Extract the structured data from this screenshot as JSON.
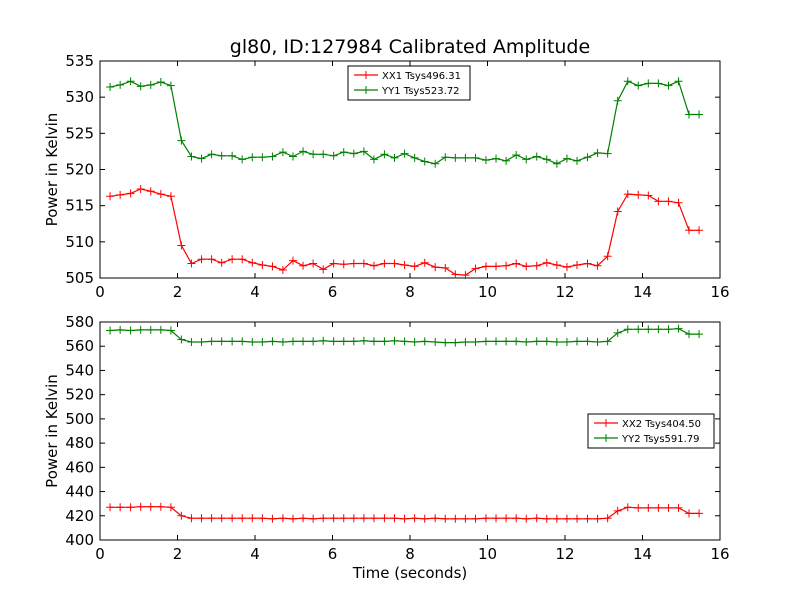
{
  "figure": {
    "title": "gl80, ID:127984 Calibrated Amplitude",
    "xlabel": "Time (seconds)"
  },
  "chart_data": [
    {
      "type": "line",
      "title": "gl80, ID:127984 Calibrated Amplitude",
      "xlabel": "",
      "ylabel": "Power in Kelvin",
      "xlim": [
        0,
        16
      ],
      "ylim": [
        505,
        535
      ],
      "xticks": [
        "0",
        "2",
        "4",
        "6",
        "8",
        "10",
        "12",
        "14",
        "16"
      ],
      "yticks": [
        "505",
        "510",
        "515",
        "520",
        "525",
        "530",
        "535"
      ],
      "grid": false,
      "legend_position": "top-center",
      "x": [
        0.26,
        0.52,
        0.79,
        1.05,
        1.31,
        1.57,
        1.83,
        2.1,
        2.36,
        2.62,
        2.88,
        3.14,
        3.41,
        3.67,
        3.93,
        4.19,
        4.45,
        4.72,
        4.98,
        5.24,
        5.5,
        5.76,
        6.03,
        6.29,
        6.55,
        6.81,
        7.07,
        7.34,
        7.6,
        7.86,
        8.12,
        8.38,
        8.65,
        8.91,
        9.17,
        9.43,
        9.69,
        9.96,
        10.22,
        10.48,
        10.74,
        11.0,
        11.27,
        11.53,
        11.79,
        12.05,
        12.31,
        12.58,
        12.84,
        13.1,
        13.36,
        13.62,
        13.89,
        14.15,
        14.41,
        14.67,
        14.93,
        15.2,
        15.46
      ],
      "series": [
        {
          "name": "XX1 Tsys496.31",
          "color": "#ff0000",
          "values": [
            516.3,
            516.5,
            516.7,
            517.3,
            517.0,
            516.6,
            516.3,
            509.5,
            507.0,
            507.6,
            507.6,
            507.1,
            507.6,
            507.6,
            507.1,
            506.8,
            506.6,
            506.1,
            507.4,
            506.7,
            507.0,
            506.2,
            507.0,
            506.9,
            507.0,
            507.0,
            506.7,
            507.0,
            507.0,
            506.8,
            506.6,
            507.1,
            506.5,
            506.4,
            505.5,
            505.4,
            506.3,
            506.6,
            506.6,
            506.7,
            507.0,
            506.6,
            506.7,
            507.1,
            506.8,
            506.5,
            506.8,
            507.0,
            506.7,
            508.0,
            514.2,
            516.6,
            516.5,
            516.4,
            515.6,
            515.6,
            515.4,
            511.6,
            511.6
          ]
        },
        {
          "name": "YY1 Tsys523.72",
          "color": "#008000",
          "values": [
            531.4,
            531.7,
            532.2,
            531.5,
            531.7,
            532.1,
            531.6,
            524.0,
            521.8,
            521.5,
            522.1,
            521.9,
            521.9,
            521.4,
            521.7,
            521.7,
            521.8,
            522.4,
            521.8,
            522.5,
            522.1,
            522.1,
            521.9,
            522.4,
            522.2,
            522.5,
            521.4,
            522.1,
            521.6,
            522.2,
            521.6,
            521.1,
            520.8,
            521.7,
            521.6,
            521.6,
            521.6,
            521.3,
            521.5,
            521.2,
            522.0,
            521.4,
            521.8,
            521.4,
            520.8,
            521.5,
            521.2,
            521.7,
            522.3,
            522.2,
            529.5,
            532.2,
            531.6,
            531.9,
            531.9,
            531.6,
            532.2,
            527.6,
            527.6
          ]
        }
      ]
    },
    {
      "type": "line",
      "title": "",
      "xlabel": "Time (seconds)",
      "ylabel": "Power in Kelvin",
      "xlim": [
        0,
        16
      ],
      "ylim": [
        400,
        580
      ],
      "xticks": [
        "0",
        "2",
        "4",
        "6",
        "8",
        "10",
        "12",
        "14",
        "16"
      ],
      "yticks": [
        "400",
        "420",
        "440",
        "460",
        "480",
        "500",
        "520",
        "540",
        "560",
        "580"
      ],
      "grid": false,
      "legend_position": "center-right",
      "x": [
        0.26,
        0.52,
        0.79,
        1.05,
        1.31,
        1.57,
        1.83,
        2.1,
        2.36,
        2.62,
        2.88,
        3.14,
        3.41,
        3.67,
        3.93,
        4.19,
        4.45,
        4.72,
        4.98,
        5.24,
        5.5,
        5.76,
        6.03,
        6.29,
        6.55,
        6.81,
        7.07,
        7.34,
        7.6,
        7.86,
        8.12,
        8.38,
        8.65,
        8.91,
        9.17,
        9.43,
        9.69,
        9.96,
        10.22,
        10.48,
        10.74,
        11.0,
        11.27,
        11.53,
        11.79,
        12.05,
        12.31,
        12.58,
        12.84,
        13.1,
        13.36,
        13.62,
        13.89,
        14.15,
        14.41,
        14.67,
        14.93,
        15.2,
        15.46
      ],
      "series": [
        {
          "name": "XX2 Tsys404.50",
          "color": "#ff0000",
          "values": [
            427,
            427,
            427,
            427.5,
            427.5,
            427.5,
            427,
            420,
            418,
            418,
            418,
            418,
            418,
            418,
            418,
            418,
            417.5,
            418,
            417.5,
            418,
            417.5,
            418,
            418,
            418,
            418,
            418,
            418,
            418,
            418,
            417.5,
            418,
            417.5,
            418,
            417.5,
            417.5,
            417.5,
            417.5,
            418,
            418,
            418,
            418,
            417.5,
            418,
            417.5,
            417.5,
            417.5,
            417.5,
            417.5,
            417.5,
            418,
            424,
            427,
            426.5,
            426.5,
            426.5,
            426.5,
            426.5,
            422,
            422
          ]
        },
        {
          "name": "YY2 Tsys591.79",
          "color": "#008000",
          "values": [
            573,
            573.5,
            573,
            573.5,
            573.5,
            573.5,
            573,
            565.5,
            563.5,
            563.5,
            564,
            564,
            564,
            564,
            563.5,
            563.5,
            564,
            563.5,
            564,
            564,
            564,
            564.5,
            564,
            564,
            564,
            564.5,
            564,
            564,
            564.5,
            564,
            563.5,
            564,
            563.5,
            563,
            563,
            563.5,
            563.5,
            564,
            564,
            564,
            564,
            563.5,
            564,
            564,
            563.5,
            563.5,
            564,
            564,
            563.5,
            564,
            571,
            574,
            574,
            574,
            574,
            574,
            574.5,
            570,
            570
          ]
        }
      ]
    }
  ]
}
